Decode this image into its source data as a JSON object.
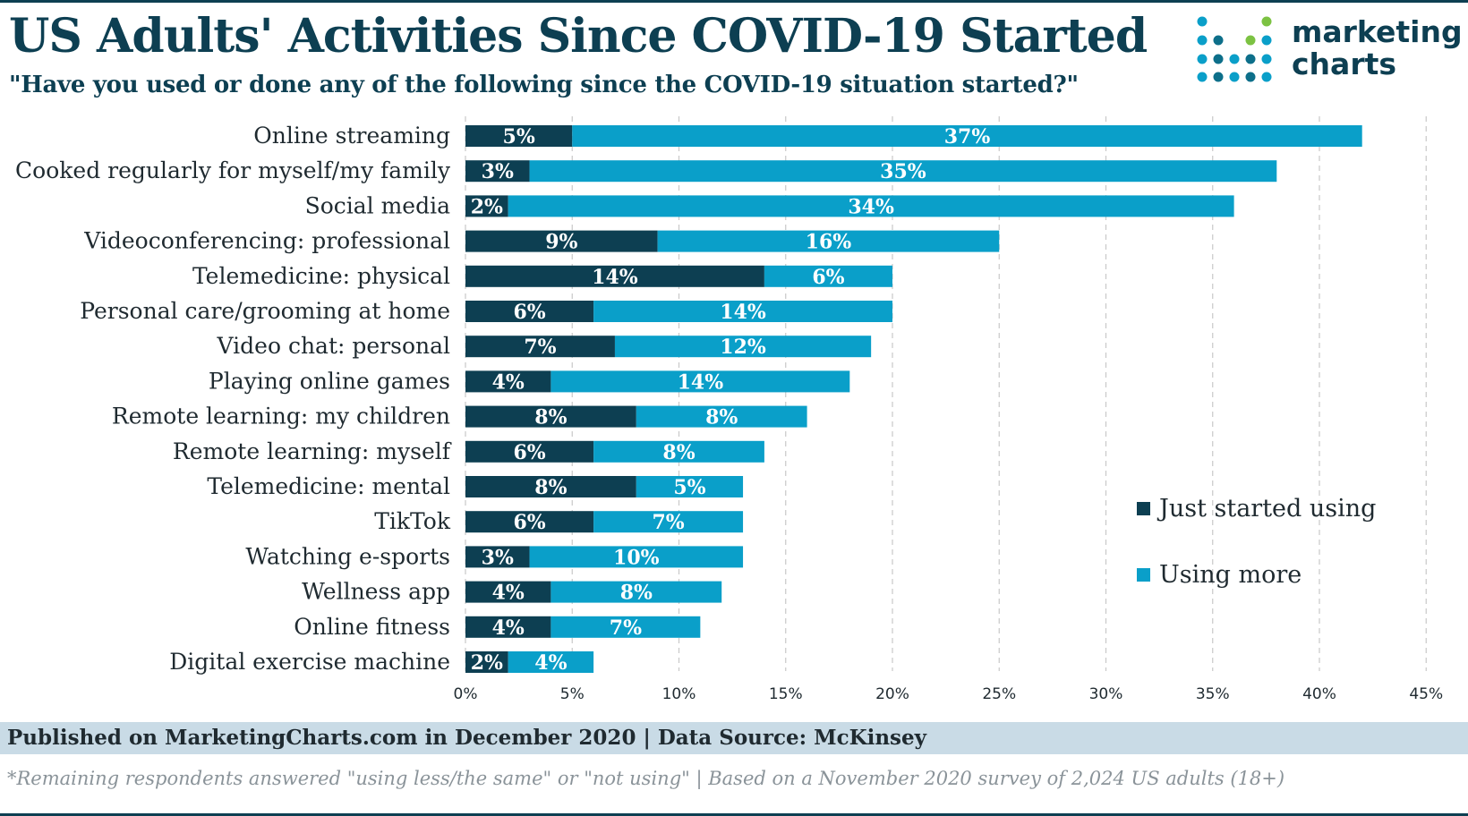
{
  "header": {
    "title": "US Adults' Activities Since COVID-19 Started",
    "subtitle": "\"Have you used or done any of the following since the COVID-19 situation started?\""
  },
  "logo": {
    "line1": "marketing",
    "line2": "charts"
  },
  "colors": {
    "just_started": "#0d3f52",
    "using_more": "#0a9fc9",
    "gridline": "#c8c8c8",
    "brand_navy": "#0d3f52",
    "footer_band": "#c9dbe6"
  },
  "chart_data": {
    "type": "bar",
    "orientation": "horizontal",
    "stacked": true,
    "categories": [
      "Online streaming",
      "Cooked regularly for myself/my family",
      "Social media",
      "Videoconferencing: professional",
      "Telemedicine: physical",
      "Personal care/grooming at home",
      "Video chat: personal",
      "Playing online games",
      "Remote learning: my children",
      "Remote learning: myself",
      "Telemedicine: mental",
      "TikTok",
      "Watching e-sports",
      "Wellness app",
      "Online fitness",
      "Digital exercise machine"
    ],
    "series": [
      {
        "name": "Just started using",
        "values": [
          5,
          3,
          2,
          9,
          14,
          6,
          7,
          4,
          8,
          6,
          8,
          6,
          3,
          4,
          4,
          2
        ],
        "colorKey": "just_started"
      },
      {
        "name": "Using more",
        "values": [
          37,
          35,
          34,
          16,
          6,
          14,
          12,
          14,
          8,
          8,
          5,
          7,
          10,
          8,
          7,
          4
        ],
        "colorKey": "using_more"
      }
    ],
    "xlim": [
      0,
      45
    ],
    "xticks": [
      0,
      5,
      10,
      15,
      20,
      25,
      30,
      35,
      40,
      45
    ],
    "tick_suffix": "%",
    "grid": true,
    "legend_position": "right"
  },
  "legend": {
    "items": [
      {
        "label": "Just started using",
        "colorKey": "just_started"
      },
      {
        "label": "Using more",
        "colorKey": "using_more"
      }
    ]
  },
  "footer": {
    "published": "Published on MarketingCharts.com in December 2020 | Data Source: McKinsey",
    "note": "*Remaining respondents answered \"using less/the same\" or \"not using\" | Based on a November 2020 survey of 2,024 US adults (18+)"
  }
}
